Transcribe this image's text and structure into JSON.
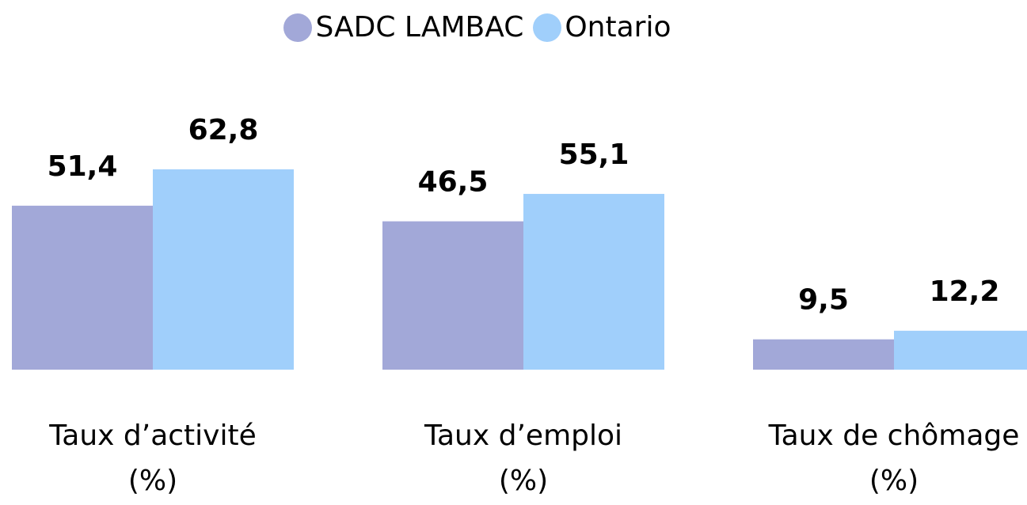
{
  "chart_data": {
    "type": "bar",
    "categories": [
      "Taux d’activité\n(%)",
      "Taux d’emploi\n(%)",
      "Taux de chômage\n(%)"
    ],
    "series": [
      {
        "name": "SADC LAMBAC",
        "color": "#a2a8d8",
        "values": [
          51.4,
          46.5,
          9.5
        ],
        "value_labels": [
          "51,4",
          "46,5",
          "9,5"
        ]
      },
      {
        "name": "Ontario",
        "color": "#a0cffb",
        "values": [
          62.8,
          55.1,
          12.2
        ],
        "value_labels": [
          "62,8",
          "55,1",
          "12,2"
        ]
      }
    ]
  }
}
